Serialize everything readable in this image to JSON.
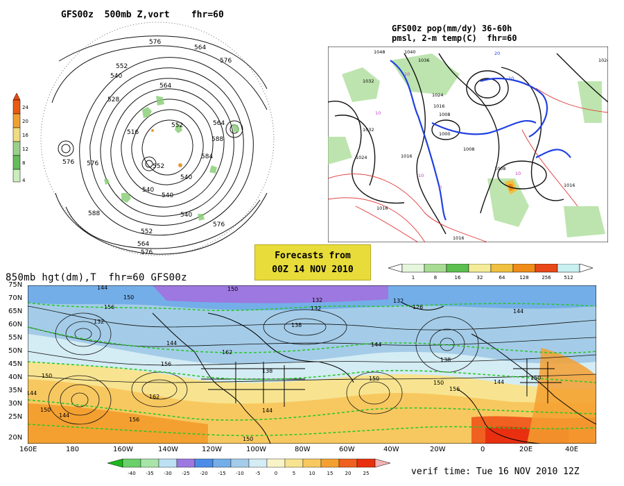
{
  "panel_vort": {
    "title": "GFS00z  500mb Z,vort    fhr=60",
    "colorbar": {
      "ticks": [
        "24",
        "20",
        "16",
        "12",
        "8",
        "4"
      ],
      "colors": [
        "#e85a14",
        "#f0a030",
        "#f0dc80",
        "#9ad08a",
        "#64bc5a",
        "#caeebc"
      ]
    },
    "contour_labels": [
      "576",
      "564",
      "552",
      "528",
      "540",
      "516",
      "564",
      "576",
      "576",
      "588",
      "552",
      "564",
      "576",
      "540",
      "540",
      "552",
      "540",
      "584",
      "576",
      "588",
      "552",
      "564",
      "576",
      "540"
    ]
  },
  "panel_pop": {
    "title_line1": "GFS00z pop(mm/dy) 36-60h",
    "title_line2": "pmsl, 2-m temp(C)  fhr=60",
    "colorbar": {
      "ticks": [
        "1",
        "8",
        "16",
        "32",
        "64",
        "128",
        "256",
        "512"
      ],
      "colors": [
        "#e6f6dc",
        "#a8dc94",
        "#5cc050",
        "#f4ec98",
        "#f0c040",
        "#f08c18",
        "#e84818",
        "#c8f0f0"
      ]
    },
    "contour_labels": [
      "1048",
      "1040",
      "1036",
      "1032",
      "1024",
      "1016",
      "1008",
      "1032",
      "1024",
      "1016",
      "1008",
      "1016",
      "1016",
      "1000",
      "1024",
      "1016",
      "1008",
      "10",
      "10",
      "10",
      "10",
      "0",
      "10",
      "20"
    ]
  },
  "info_box": {
    "line1": "Forecasts from",
    "line2": "00Z 14 NOV 2010"
  },
  "panel_850": {
    "title": "850mb hgt(dm),T  fhr=60 GFS00z",
    "lat_labels": [
      "75N",
      "70N",
      "65N",
      "60N",
      "55N",
      "50N",
      "45N",
      "40N",
      "35N",
      "30N",
      "25N",
      "20N"
    ],
    "lon_labels": [
      "160E",
      "180",
      "160W",
      "140W",
      "120W",
      "100W",
      "80W",
      "60W",
      "40W",
      "20W",
      "0",
      "20E",
      "40E"
    ],
    "contour_labels": [
      "144",
      "150",
      "156",
      "132",
      "144",
      "150",
      "132",
      "138",
      "132",
      "126",
      "132",
      "144",
      "138",
      "144",
      "162",
      "150",
      "144",
      "156",
      "150",
      "144",
      "156",
      "138",
      "150",
      "150",
      "162",
      "150",
      "144",
      "156",
      "150",
      "144"
    ],
    "colorbar": {
      "ticks": [
        "-40",
        "-35",
        "-30",
        "-25",
        "-20",
        "-15",
        "-10",
        "-5",
        "0",
        "5",
        "10",
        "15",
        "20",
        "25"
      ],
      "colors": [
        "#1cb81c",
        "#6ad06a",
        "#a8e4a8",
        "#bce0f4",
        "#9c78e0",
        "#4c8ce8",
        "#74aee8",
        "#a4cce8",
        "#d4ecf4",
        "#f8f4c8",
        "#f8e490",
        "#f8c860",
        "#f4a030",
        "#f06020",
        "#e83010",
        "#f4b4b4"
      ]
    },
    "verif_time": "verif time: Tue 16 NOV 2010 12Z"
  }
}
